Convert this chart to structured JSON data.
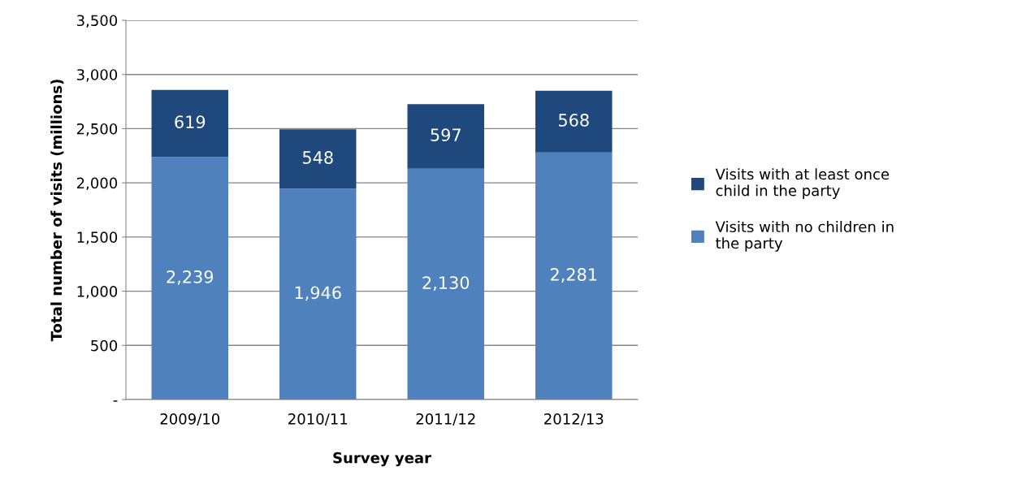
{
  "chart_data": {
    "type": "bar",
    "stacked": true,
    "xlabel": "Survey year",
    "ylabel": "Total number of visits (millions)",
    "categories": [
      "2009/10",
      "2010/11",
      "2011/12",
      "2012/13"
    ],
    "series": [
      {
        "name": "Visits with no children in the party",
        "color": "#4f81bd",
        "values": [
          2239,
          1946,
          2130,
          2281
        ],
        "value_labels": [
          "2,239",
          "1,946",
          "2,130",
          "2,281"
        ]
      },
      {
        "name": "Visits with at least once child in the party",
        "color": "#1f497d",
        "values": [
          619,
          548,
          597,
          568
        ],
        "value_labels": [
          "619",
          "548",
          "597",
          "568"
        ]
      }
    ],
    "ylim": [
      0,
      3500
    ],
    "yticks": [
      {
        "value": 0,
        "label": "-"
      },
      {
        "value": 500,
        "label": "500"
      },
      {
        "value": 1000,
        "label": "1,000"
      },
      {
        "value": 1500,
        "label": "1,500"
      },
      {
        "value": 2000,
        "label": "2,000"
      },
      {
        "value": 2500,
        "label": "2,500"
      },
      {
        "value": 3000,
        "label": "3,000"
      },
      {
        "value": 3500,
        "label": "3,500"
      }
    ],
    "grid": "y",
    "legend": "right"
  }
}
